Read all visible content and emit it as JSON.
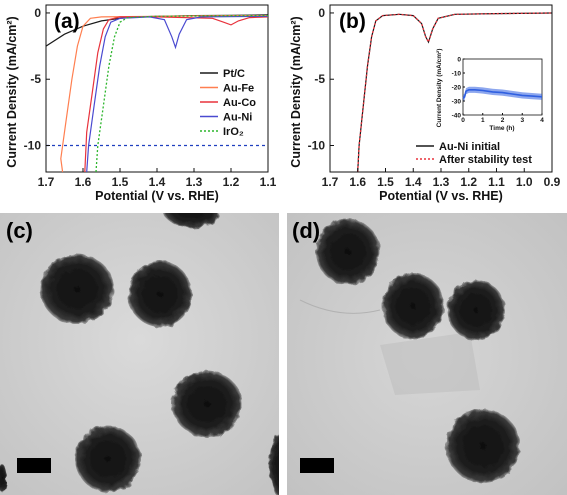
{
  "panels": {
    "a": "(a)",
    "b": "(b)",
    "c": "(c)",
    "d": "(d)"
  },
  "colors": {
    "ptc": "#1a1a1a",
    "aufe": "#ff7f50",
    "auco": "#e8323c",
    "auni": "#4a4ad0",
    "iro2": "#2bb52b",
    "ref": "#1f3fbf",
    "initial": "#1a1a1a",
    "after": "#e8323c",
    "inset": "#2f5fe0"
  },
  "chart_data": [
    {
      "type": "line",
      "panel": "(a)",
      "xlabel": "Potential (V vs. RHE)",
      "ylabel": "Current Density (mA/cm²)",
      "xlim": [
        1.7,
        1.1
      ],
      "ylim": [
        -12,
        0.6
      ],
      "x_reversed": true,
      "xticks": [
        "1.7",
        "1.6",
        "1.5",
        "1.4",
        "1.3",
        "1.2",
        "1.1"
      ],
      "yticks": [
        "0",
        "-5",
        "-10"
      ],
      "legend_position": "right",
      "reference_line_y": -10,
      "series": [
        {
          "name": "Pt/C",
          "key": "ptc",
          "dash": false,
          "points": [
            [
              1.7,
              -2.5
            ],
            [
              1.65,
              -1.6
            ],
            [
              1.6,
              -1.0
            ],
            [
              1.55,
              -0.6
            ],
            [
              1.5,
              -0.4
            ],
            [
              1.45,
              -0.3
            ],
            [
              1.4,
              -0.25
            ],
            [
              1.3,
              -0.2
            ],
            [
              1.2,
              -0.18
            ],
            [
              1.1,
              -0.15
            ]
          ]
        },
        {
          "name": "Au-Fe",
          "key": "aufe",
          "dash": false,
          "points": [
            [
              1.655,
              -12
            ],
            [
              1.66,
              -11
            ],
            [
              1.645,
              -8
            ],
            [
              1.63,
              -5
            ],
            [
              1.615,
              -2.5
            ],
            [
              1.6,
              -1.0
            ],
            [
              1.58,
              -0.4
            ],
            [
              1.55,
              -0.3
            ],
            [
              1.4,
              -0.25
            ],
            [
              1.3,
              -0.22
            ],
            [
              1.1,
              -0.2
            ]
          ]
        },
        {
          "name": "Au-Co",
          "key": "auco",
          "dash": false,
          "points": [
            [
              1.595,
              -12
            ],
            [
              1.59,
              -9
            ],
            [
              1.575,
              -6
            ],
            [
              1.56,
              -3
            ],
            [
              1.545,
              -1.2
            ],
            [
              1.53,
              -0.5
            ],
            [
              1.5,
              -0.3
            ],
            [
              1.4,
              -0.3
            ],
            [
              1.25,
              -0.4
            ],
            [
              1.22,
              -0.7
            ],
            [
              1.2,
              -0.9
            ],
            [
              1.18,
              -0.6
            ],
            [
              1.15,
              -0.35
            ],
            [
              1.1,
              -0.3
            ]
          ]
        },
        {
          "name": "Au-Ni",
          "key": "auni",
          "dash": false,
          "points": [
            [
              1.59,
              -12
            ],
            [
              1.585,
              -10
            ],
            [
              1.57,
              -7
            ],
            [
              1.555,
              -4
            ],
            [
              1.54,
              -1.8
            ],
            [
              1.525,
              -0.7
            ],
            [
              1.5,
              -0.4
            ],
            [
              1.42,
              -0.3
            ],
            [
              1.38,
              -0.5
            ],
            [
              1.36,
              -1.8
            ],
            [
              1.35,
              -2.6
            ],
            [
              1.34,
              -1.6
            ],
            [
              1.32,
              -0.5
            ],
            [
              1.28,
              -0.3
            ],
            [
              1.1,
              -0.25
            ]
          ]
        },
        {
          "name": "IrO₂",
          "key": "iro2",
          "dash": true,
          "points": [
            [
              1.565,
              -12
            ],
            [
              1.56,
              -10
            ],
            [
              1.545,
              -7
            ],
            [
              1.53,
              -4
            ],
            [
              1.515,
              -1.8
            ],
            [
              1.5,
              -0.7
            ],
            [
              1.48,
              -0.35
            ],
            [
              1.4,
              -0.25
            ],
            [
              1.1,
              -0.2
            ]
          ]
        }
      ]
    },
    {
      "type": "line",
      "panel": "(b)",
      "xlabel": "Potential (V vs. RHE)",
      "ylabel": "Current Density (mA/cm²)",
      "xlim": [
        1.7,
        0.9
      ],
      "ylim": [
        -12,
        0.6
      ],
      "x_reversed": true,
      "xticks": [
        "1.7",
        "1.6",
        "1.5",
        "1.4",
        "1.3",
        "1.2",
        "1.1",
        "1.0",
        "0.9"
      ],
      "yticks": [
        "0",
        "-5",
        "-10"
      ],
      "legend_position": "bottom-right",
      "series": [
        {
          "name": "Au-Ni initial",
          "key": "initial",
          "dash": false,
          "points": [
            [
              1.6,
              -12
            ],
            [
              1.595,
              -10
            ],
            [
              1.58,
              -7
            ],
            [
              1.565,
              -4
            ],
            [
              1.55,
              -1.8
            ],
            [
              1.535,
              -0.6
            ],
            [
              1.51,
              -0.2
            ],
            [
              1.45,
              -0.1
            ],
            [
              1.4,
              -0.2
            ],
            [
              1.37,
              -0.8
            ],
            [
              1.355,
              -1.8
            ],
            [
              1.345,
              -2.2
            ],
            [
              1.33,
              -1.2
            ],
            [
              1.31,
              -0.4
            ],
            [
              1.25,
              -0.1
            ],
            [
              1.1,
              -0.05
            ],
            [
              0.9,
              0
            ]
          ]
        },
        {
          "name": "After stability test",
          "key": "after",
          "dash": true,
          "points": [
            [
              1.6,
              -12
            ],
            [
              1.595,
              -10
            ],
            [
              1.58,
              -7
            ],
            [
              1.565,
              -4
            ],
            [
              1.55,
              -1.8
            ],
            [
              1.535,
              -0.6
            ],
            [
              1.51,
              -0.2
            ],
            [
              1.45,
              -0.1
            ],
            [
              1.4,
              -0.2
            ],
            [
              1.37,
              -0.8
            ],
            [
              1.355,
              -1.8
            ],
            [
              1.345,
              -2.2
            ],
            [
              1.33,
              -1.2
            ],
            [
              1.31,
              -0.4
            ],
            [
              1.25,
              -0.1
            ],
            [
              1.1,
              -0.05
            ],
            [
              0.9,
              0
            ]
          ]
        }
      ],
      "inset": {
        "xlabel": "Time (h)",
        "ylabel": "Current Density (mA/cm²)",
        "xlim": [
          0,
          4
        ],
        "ylim": [
          -40,
          0
        ],
        "xticks": [
          "0",
          "1",
          "2",
          "3",
          "4"
        ],
        "yticks": [
          "0",
          "-10",
          "-20",
          "-30",
          "-40"
        ],
        "points": [
          [
            0,
            -28
          ],
          [
            0.08,
            -27
          ],
          [
            0.15,
            -23
          ],
          [
            0.3,
            -22
          ],
          [
            0.6,
            -22
          ],
          [
            1,
            -22.5
          ],
          [
            1.5,
            -23.5
          ],
          [
            2,
            -24
          ],
          [
            2.5,
            -25
          ],
          [
            3,
            -26
          ],
          [
            3.5,
            -26.5
          ],
          [
            4,
            -27
          ]
        ]
      }
    }
  ],
  "tem": {
    "c_label": "(c)",
    "d_label": "(d)"
  }
}
